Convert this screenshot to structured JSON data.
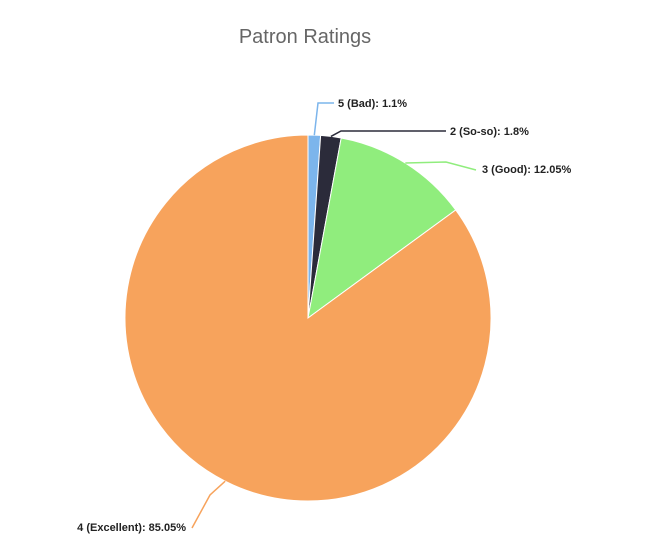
{
  "chart_data": {
    "type": "pie",
    "title": "Patron Ratings",
    "legend": "none",
    "slices": [
      {
        "label": "5 (Bad): 1.1%",
        "name": "5 (Bad)",
        "value": 1.1,
        "color": "#7cb5ec"
      },
      {
        "label": "2 (So-so): 1.8%",
        "name": "2 (So-so)",
        "value": 1.8,
        "color": "#2b2b3a"
      },
      {
        "label": "3 (Good): 12.05%",
        "name": "3 (Good)",
        "value": 12.05,
        "color": "#90ed7d"
      },
      {
        "label": "4 (Excellent): 85.05%",
        "name": "4 (Excellent)",
        "value": 85.05,
        "color": "#f7a35c"
      }
    ]
  }
}
